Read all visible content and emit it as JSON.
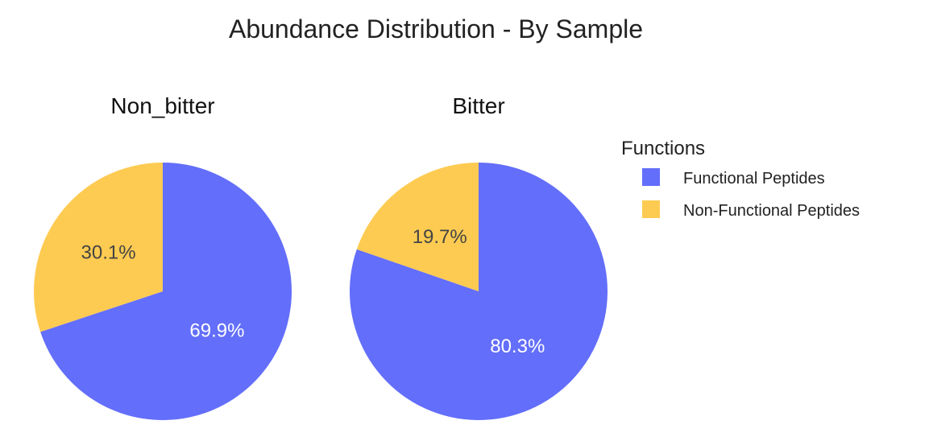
{
  "chart_data": {
    "type": "pie",
    "title": "Abundance Distribution - By Sample",
    "categories": [
      "Functional Peptides",
      "Non-Functional Peptides"
    ],
    "colors": {
      "Functional Peptides": "#636efa",
      "Non-Functional Peptides": "#fecb52"
    },
    "label_colors": {
      "Functional Peptides": "#ffffff",
      "Non-Functional Peptides": "#444444"
    },
    "pies": [
      {
        "name": "Non_bitter",
        "values": [
          69.9,
          30.1
        ],
        "labels": [
          "69.9%",
          "30.1%"
        ]
      },
      {
        "name": "Bitter",
        "values": [
          80.3,
          19.7
        ],
        "labels": [
          "80.3%",
          "19.7%"
        ]
      }
    ],
    "legend": {
      "title": "Functions",
      "placement": "right",
      "entries": [
        "Functional Peptides",
        "Non-Functional Peptides"
      ]
    }
  }
}
